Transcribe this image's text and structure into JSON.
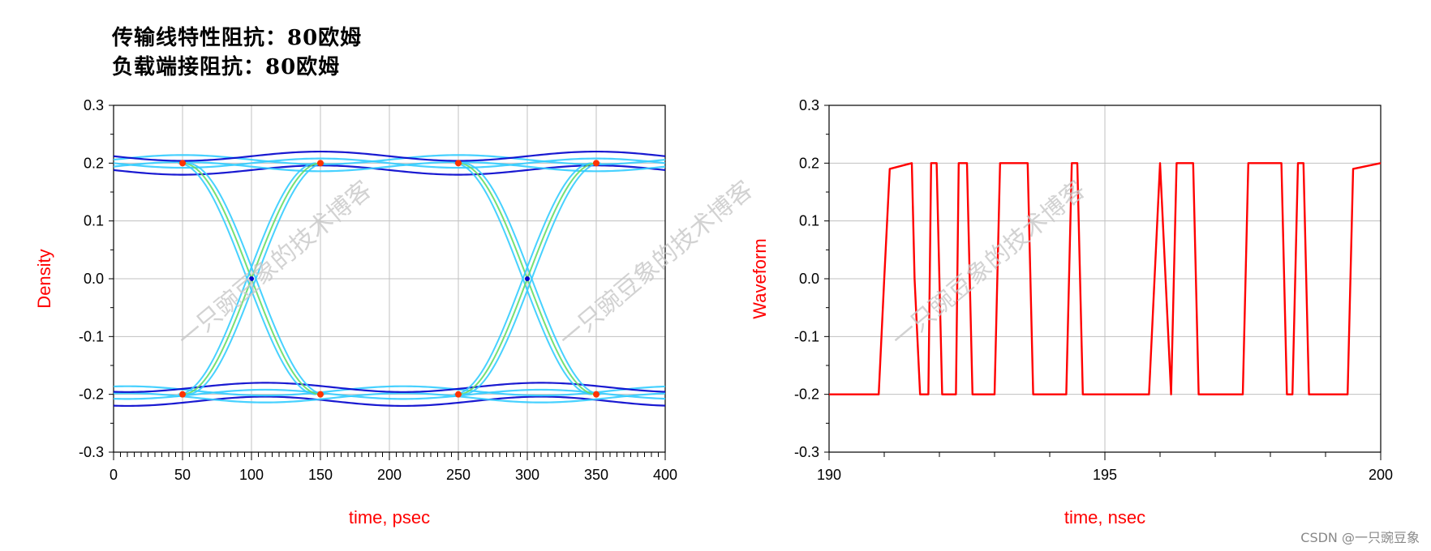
{
  "heading": {
    "line1": "传输线特性阻抗：80欧姆",
    "line2": "负载端接阻抗：80欧姆"
  },
  "watermark": "一只豌豆象的技术博客",
  "credit": "CSDN @一只豌豆象",
  "colors": {
    "axis_title": "#ff0000",
    "waveform": "#ff0000",
    "grid": "#c0c0c0",
    "density_low": "#0000cc",
    "density_mid": "#33ccff",
    "density_high": "#ff3300"
  },
  "chart_data": [
    {
      "type": "scatter",
      "kind": "eye-diagram density",
      "xlabel": "time, psec",
      "ylabel": "Density",
      "xlim": [
        0,
        400
      ],
      "ylim": [
        -0.3,
        0.3
      ],
      "xticks": [
        "0",
        "50",
        "100",
        "150",
        "200",
        "250",
        "300",
        "350",
        "400"
      ],
      "yticks": [
        "0.3",
        "0.2",
        "0.1",
        "0.0",
        "-0.1",
        "-0.2",
        "-0.3"
      ],
      "grid": true,
      "high_level": 0.2,
      "low_level": -0.2,
      "crossings": [
        {
          "x": 100,
          "y": 0.0
        },
        {
          "x": 300,
          "y": 0.0
        }
      ],
      "transition_edges": [
        {
          "from": {
            "x": 50,
            "y": 0.2
          },
          "to": {
            "x": 150,
            "y": -0.2
          }
        },
        {
          "from": {
            "x": 50,
            "y": -0.2
          },
          "to": {
            "x": 150,
            "y": 0.2
          }
        },
        {
          "from": {
            "x": 250,
            "y": 0.2
          },
          "to": {
            "x": 350,
            "y": -0.2
          }
        },
        {
          "from": {
            "x": 250,
            "y": -0.2
          },
          "to": {
            "x": 350,
            "y": 0.2
          }
        }
      ]
    },
    {
      "type": "line",
      "xlabel": "time, nsec",
      "ylabel": "Waveform",
      "xlim": [
        190,
        200
      ],
      "ylim": [
        -0.3,
        0.3
      ],
      "xticks": [
        "190",
        "195",
        "200"
      ],
      "yticks": [
        "0.3",
        "0.2",
        "0.1",
        "0.0",
        "-0.1",
        "-0.2",
        "-0.3"
      ],
      "grid": true,
      "series": [
        {
          "x": [
            190.0,
            190.9,
            191.0,
            191.1,
            191.5,
            191.55,
            191.65,
            191.8,
            191.85,
            191.95,
            192.05,
            192.3,
            192.35,
            192.5,
            192.6,
            193.0,
            193.1,
            193.6,
            193.7,
            194.3,
            194.4,
            194.5,
            194.6,
            195.8,
            195.9,
            196.0,
            196.1,
            196.2,
            196.3,
            196.4,
            196.5,
            196.6,
            196.7,
            197.5,
            197.6,
            198.2,
            198.3,
            198.4,
            198.5,
            198.6,
            198.7,
            199.4,
            199.5,
            200.0
          ],
          "y": [
            -0.2,
            -0.2,
            0.0,
            0.19,
            0.2,
            0.0,
            -0.2,
            -0.2,
            0.2,
            0.2,
            -0.2,
            -0.2,
            0.2,
            0.2,
            -0.2,
            -0.2,
            0.2,
            0.2,
            -0.2,
            -0.2,
            0.2,
            0.2,
            -0.2,
            -0.2,
            0.0,
            0.2,
            0.0,
            -0.2,
            0.2,
            0.2,
            0.2,
            0.2,
            -0.2,
            -0.2,
            0.2,
            0.2,
            -0.2,
            -0.2,
            0.2,
            0.2,
            -0.2,
            -0.2,
            0.19,
            0.2
          ]
        }
      ]
    }
  ]
}
